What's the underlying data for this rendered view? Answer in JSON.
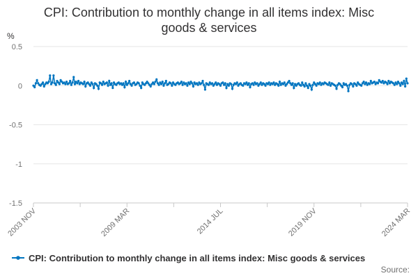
{
  "chart_data": {
    "type": "line",
    "title_line1": "CPI: Contribution to monthly change in all items index: Misc",
    "title_line2": "goods & services",
    "unit": "%",
    "x_tick_labels": [
      "2003 NOV",
      "2009 MAR",
      "2014 JUL",
      "2019 NOV",
      "2024 MAR"
    ],
    "y_ticks": [
      0.5,
      0,
      -0.5,
      -1,
      -1.5
    ],
    "y_tick_labels": [
      "0.5",
      "0",
      "-0.5",
      "-1",
      "-1.5"
    ],
    "ylim": [
      -1.5,
      0.5
    ],
    "x_start": "2003-11",
    "x_end": "2024-03",
    "grid": true,
    "legend_position": "bottom",
    "series": [
      {
        "name": "CPI: Contribution to monthly change in all items index: Misc goods & services",
        "color": "#0075c0",
        "values": [
          0.0,
          -0.02,
          0.03,
          0.07,
          0.03,
          0.01,
          0.0,
          0.02,
          0.04,
          -0.01,
          0.02,
          0.04,
          0.03,
          0.05,
          0.13,
          0.02,
          0.04,
          0.13,
          0.03,
          0.01,
          0.06,
          0.04,
          0.02,
          0.07,
          0.05,
          0.03,
          0.04,
          0.02,
          0.05,
          0.02,
          0.03,
          0.06,
          0.01,
          0.04,
          0.11,
          0.02,
          0.05,
          0.03,
          0.06,
          0.02,
          0.04,
          0.03,
          0.02,
          0.05,
          -0.01,
          0.03,
          0.04,
          0.02,
          0.0,
          0.04,
          0.02,
          -0.03,
          0.03,
          0.02,
          0.0,
          -0.04,
          0.04,
          0.03,
          0.01,
          0.05,
          0.02,
          0.03,
          0.04,
          0.0,
          0.06,
          0.01,
          0.03,
          -0.03,
          0.04,
          0.02,
          0.01,
          0.03,
          0.04,
          0.02,
          0.03,
          0.01,
          0.03,
          -0.02,
          0.05,
          0.01,
          0.03,
          0.06,
          0.02,
          0.0,
          0.03,
          0.04,
          0.01,
          0.02,
          0.04,
          0.03,
          0.0,
          -0.03,
          0.04,
          0.02,
          0.01,
          0.03,
          0.05,
          0.03,
          0.01,
          -0.01,
          0.02,
          0.04,
          0.02,
          0.05,
          0.08,
          0.03,
          0.01,
          0.04,
          0.02,
          0.05,
          0.0,
          0.03,
          0.06,
          0.01,
          0.02,
          0.04,
          0.03,
          0.0,
          0.04,
          0.02,
          0.01,
          0.03,
          0.04,
          0.02,
          0.03,
          0.05,
          0.01,
          0.04,
          0.02,
          0.03,
          0.0,
          0.04,
          0.02,
          0.05,
          0.03,
          -0.01,
          0.04,
          0.02,
          0.03,
          0.01,
          0.04,
          0.02,
          0.03,
          0.06,
          0.01,
          -0.05,
          0.03,
          0.02,
          0.01,
          0.04,
          0.02,
          0.03,
          0.0,
          0.02,
          0.04,
          0.01,
          0.03,
          0.02,
          0.0,
          0.03,
          0.04,
          0.01,
          0.03,
          -0.03,
          0.02,
          0.0,
          0.03,
          0.02,
          -0.04,
          0.01,
          0.03,
          0.02,
          0.04,
          0.0,
          0.02,
          0.03,
          0.01,
          0.0,
          0.03,
          0.02,
          0.04,
          0.01,
          0.03,
          -0.02,
          0.02,
          0.03,
          0.01,
          0.04,
          0.02,
          0.03,
          0.0,
          0.02,
          0.04,
          0.01,
          0.03,
          0.02,
          0.0,
          0.03,
          0.02,
          0.04,
          0.01,
          0.03,
          0.02,
          0.04,
          0.01,
          0.03,
          0.02,
          0.0,
          0.05,
          0.01,
          0.03,
          0.02,
          0.04,
          0.0,
          0.02,
          0.04,
          0.06,
          0.03,
          0.01,
          0.03,
          -0.03,
          0.02,
          0.0,
          0.02,
          0.03,
          0.01,
          0.0,
          0.04,
          0.01,
          -0.01,
          0.03,
          0.0,
          -0.03,
          0.02,
          0.0,
          -0.05,
          0.01,
          0.04,
          0.02,
          0.0,
          0.03,
          0.02,
          0.04,
          0.01,
          0.03,
          0.02,
          0.04,
          0.03,
          0.02,
          0.01,
          0.04,
          0.0,
          0.03,
          0.02,
          0.01,
          0.0,
          -0.04,
          0.01,
          0.03,
          0.02,
          0.0,
          -0.02,
          0.03,
          0.01,
          0.02,
          0.0,
          -0.07,
          0.01,
          0.03,
          0.02,
          -0.01,
          0.03,
          0.02,
          0.0,
          0.04,
          0.02,
          0.01,
          0.0,
          0.03,
          0.05,
          0.02,
          0.04,
          0.01,
          0.03,
          0.02,
          0.06,
          0.03,
          0.04,
          0.05,
          0.02,
          0.04,
          0.03,
          0.07,
          0.05,
          0.04,
          0.06,
          0.03,
          0.05,
          0.04,
          0.02,
          0.06,
          0.03,
          0.05,
          0.04,
          0.03,
          0.01,
          0.04,
          0.02,
          0.05,
          0.03,
          0.0,
          0.04,
          0.02,
          0.06,
          -0.01,
          0.09,
          0.03
        ]
      }
    ]
  },
  "source_label": "Source:"
}
